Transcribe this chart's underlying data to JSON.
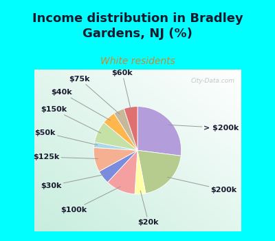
{
  "title": "Income distribution in Bradley\nGardens, NJ (%)",
  "subtitle": "White residents",
  "title_color": "#1a1a2e",
  "subtitle_color": "#cc8833",
  "bg_color": "#00ffff",
  "watermark": "City-Data.com",
  "wedge_labels": [
    "> $200k",
    "$200k",
    "$20k",
    "$100k",
    "$30k",
    "$125k",
    "$50k",
    "$150k",
    "$40k",
    "$75k",
    "$60k"
  ],
  "wedge_values": [
    27,
    20,
    4,
    11,
    5,
    9,
    2,
    8,
    5,
    4,
    5
  ],
  "wedge_colors": [
    "#b39ddb",
    "#b5cc8e",
    "#ffffaa",
    "#f4a0a0",
    "#7b8cde",
    "#f4b090",
    "#add8e6",
    "#c5e1a5",
    "#ffb74d",
    "#c8b89a",
    "#e07070"
  ],
  "title_fontsize": 13,
  "subtitle_fontsize": 10,
  "label_fontsize": 8
}
